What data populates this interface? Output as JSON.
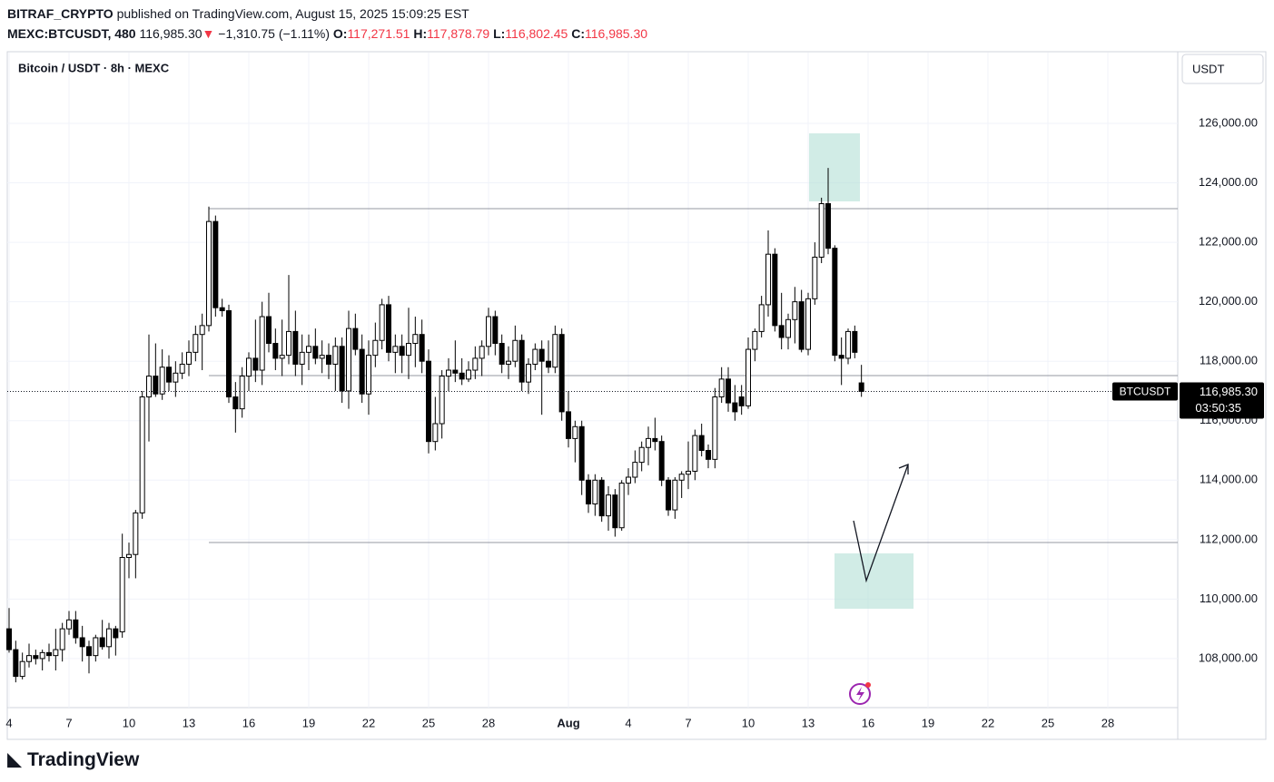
{
  "header": {
    "author": "BITRAF_CRYPTO",
    "published": "published on TradingView.com, August 15, 2025 15:09:25 EST",
    "symbol": "MEXC:BTCUSDT, 480",
    "last": "116,985.30",
    "change": "−1,310.75 (−1.11%)",
    "o_label": "O:",
    "o": "117,271.51",
    "h_label": "H:",
    "h": "117,878.79",
    "l_label": "L:",
    "l": "116,802.45",
    "c_label": "C:",
    "c": "116,985.30"
  },
  "footer": {
    "brand": "TradingView"
  },
  "chart_data": {
    "type": "candlestick",
    "title": "Bitcoin / USDT · 8h · MEXC",
    "currency": "USDT",
    "ylim": [
      106350,
      128380
    ],
    "yticks": [
      {
        "value": 108000,
        "label": "108,000.00"
      },
      {
        "value": 110000,
        "label": "110,000.00"
      },
      {
        "value": 112000,
        "label": "112,000.00"
      },
      {
        "value": 114000,
        "label": "114,000.00"
      },
      {
        "value": 116000,
        "label": "116,000.00"
      },
      {
        "value": 118000,
        "label": "118,000.00"
      },
      {
        "value": 120000,
        "label": "120,000.00"
      },
      {
        "value": 122000,
        "label": "122,000.00"
      },
      {
        "value": 124000,
        "label": "124,000.00"
      },
      {
        "value": 126000,
        "label": "126,000.00"
      }
    ],
    "xticks": [
      {
        "value": 0,
        "label": "4"
      },
      {
        "value": 9,
        "label": "7"
      },
      {
        "value": 18,
        "label": "10"
      },
      {
        "value": 27,
        "label": "13"
      },
      {
        "value": 36,
        "label": "16"
      },
      {
        "value": 45,
        "label": "19"
      },
      {
        "value": 54,
        "label": "22"
      },
      {
        "value": 63,
        "label": "25"
      },
      {
        "value": 72,
        "label": "28"
      },
      {
        "value": 84,
        "label": "Aug"
      },
      {
        "value": 93,
        "label": "4"
      },
      {
        "value": 102,
        "label": "7"
      },
      {
        "value": 111,
        "label": "10"
      },
      {
        "value": 120,
        "label": "13"
      },
      {
        "value": 129,
        "label": "16"
      },
      {
        "value": 138,
        "label": "19"
      },
      {
        "value": 147,
        "label": "22"
      },
      {
        "value": 156,
        "label": "25"
      },
      {
        "value": 165,
        "label": "28"
      }
    ],
    "grid": true,
    "up_color": "#ffffff",
    "down_color": "#000000",
    "wick_color": "#000000",
    "last_price": {
      "name": "BTCUSDT",
      "value": 116985.3,
      "label": "116,985.30",
      "countdown": "03:50:35"
    },
    "series": [
      {
        "name": "BTCUSDT",
        "ohlc": [
          [
            109000,
            109700,
            108200,
            108300
          ],
          [
            108300,
            108600,
            107200,
            107400
          ],
          [
            107400,
            108200,
            107300,
            107900
          ],
          [
            107900,
            108500,
            107700,
            108100
          ],
          [
            108100,
            108300,
            107800,
            108000
          ],
          [
            108000,
            108300,
            107600,
            108200
          ],
          [
            108200,
            108500,
            107900,
            108100
          ],
          [
            108100,
            109000,
            107600,
            108300
          ],
          [
            108300,
            109200,
            107900,
            109000
          ],
          [
            109000,
            109600,
            108800,
            109300
          ],
          [
            109300,
            109600,
            108500,
            108700
          ],
          [
            108700,
            109100,
            107900,
            108400
          ],
          [
            108400,
            108600,
            107500,
            108100
          ],
          [
            108100,
            108800,
            107900,
            108700
          ],
          [
            108700,
            109300,
            108300,
            108400
          ],
          [
            108400,
            109200,
            108000,
            109000
          ],
          [
            109000,
            109100,
            108100,
            108700
          ],
          [
            108900,
            112200,
            108700,
            111400
          ],
          [
            111400,
            111900,
            110700,
            111500
          ],
          [
            111500,
            113000,
            110700,
            112900
          ],
          [
            112900,
            117000,
            112700,
            116800
          ],
          [
            116800,
            118900,
            115300,
            117500
          ],
          [
            117500,
            118600,
            116800,
            116900
          ],
          [
            116900,
            118400,
            116700,
            117800
          ],
          [
            117800,
            118200,
            117000,
            117300
          ],
          [
            117300,
            118000,
            116800,
            117600
          ],
          [
            117600,
            118300,
            117400,
            117900
          ],
          [
            117900,
            118700,
            117500,
            118300
          ],
          [
            118300,
            119200,
            118000,
            118900
          ],
          [
            118900,
            119600,
            117700,
            119200
          ],
          [
            119200,
            123200,
            119000,
            122700
          ],
          [
            122700,
            122900,
            119500,
            119800
          ],
          [
            119800,
            120100,
            119500,
            119700
          ],
          [
            119700,
            119900,
            116600,
            116800
          ],
          [
            116800,
            117300,
            115600,
            116400
          ],
          [
            116400,
            117800,
            116100,
            117500
          ],
          [
            117500,
            118300,
            117000,
            118100
          ],
          [
            118100,
            119400,
            117300,
            117700
          ],
          [
            117700,
            120000,
            117200,
            119500
          ],
          [
            119500,
            120300,
            118300,
            118600
          ],
          [
            118600,
            119100,
            117700,
            118100
          ],
          [
            118100,
            119400,
            117500,
            118200
          ],
          [
            118200,
            120900,
            117900,
            119000
          ],
          [
            119000,
            119700,
            117500,
            117900
          ],
          [
            117900,
            118900,
            117200,
            118300
          ],
          [
            118300,
            118900,
            117700,
            118500
          ],
          [
            118500,
            119100,
            117900,
            118100
          ],
          [
            118100,
            118700,
            117600,
            118200
          ],
          [
            118200,
            118600,
            117400,
            117900
          ],
          [
            117900,
            118800,
            117000,
            118500
          ],
          [
            118500,
            118800,
            116600,
            117000
          ],
          [
            117000,
            119700,
            116400,
            119100
          ],
          [
            119100,
            119600,
            118200,
            118400
          ],
          [
            118400,
            118900,
            116600,
            116900
          ],
          [
            116900,
            118700,
            116200,
            118200
          ],
          [
            118200,
            119300,
            117800,
            118700
          ],
          [
            118700,
            120100,
            118400,
            119900
          ],
          [
            119900,
            120200,
            118000,
            118300
          ],
          [
            118300,
            118900,
            117600,
            118500
          ],
          [
            118500,
            118900,
            117600,
            118200
          ],
          [
            118200,
            119800,
            117400,
            118600
          ],
          [
            118600,
            119500,
            117800,
            118900
          ],
          [
            118900,
            119400,
            117600,
            118000
          ],
          [
            118000,
            118400,
            114900,
            115300
          ],
          [
            115300,
            116800,
            115000,
            115900
          ],
          [
            115900,
            117700,
            115400,
            117500
          ],
          [
            117500,
            118100,
            117000,
            117700
          ],
          [
            117700,
            118700,
            117300,
            117600
          ],
          [
            117600,
            118100,
            117200,
            117400
          ],
          [
            117400,
            118000,
            117300,
            117700
          ],
          [
            117700,
            118500,
            117400,
            118100
          ],
          [
            118100,
            118700,
            117500,
            118500
          ],
          [
            118500,
            119800,
            118200,
            119500
          ],
          [
            119500,
            119700,
            118200,
            118600
          ],
          [
            118600,
            118900,
            117600,
            117900
          ],
          [
            117900,
            118500,
            117400,
            118000
          ],
          [
            118000,
            119200,
            117800,
            118700
          ],
          [
            118700,
            118900,
            117000,
            117300
          ],
          [
            117300,
            118100,
            116900,
            117900
          ],
          [
            117900,
            118600,
            117700,
            118400
          ],
          [
            118400,
            118700,
            116200,
            118000
          ],
          [
            118000,
            118700,
            117600,
            117800
          ],
          [
            117800,
            119200,
            117600,
            118900
          ],
          [
            118900,
            119100,
            116000,
            116300
          ],
          [
            116300,
            117000,
            115100,
            115400
          ],
          [
            115400,
            116000,
            114600,
            115800
          ],
          [
            115800,
            116000,
            113500,
            114000
          ],
          [
            114000,
            114200,
            112900,
            113200
          ],
          [
            113200,
            114200,
            112800,
            114000
          ],
          [
            114000,
            114100,
            112600,
            112800
          ],
          [
            112800,
            113800,
            112300,
            113500
          ],
          [
            113500,
            113700,
            112100,
            112400
          ],
          [
            112400,
            114000,
            112300,
            113900
          ],
          [
            113900,
            114400,
            113500,
            114100
          ],
          [
            114100,
            115000,
            113900,
            114600
          ],
          [
            114600,
            115300,
            114300,
            115100
          ],
          [
            115100,
            115800,
            114500,
            115400
          ],
          [
            115400,
            116100,
            115000,
            115300
          ],
          [
            115300,
            115500,
            113800,
            114000
          ],
          [
            114000,
            114100,
            112800,
            113000
          ],
          [
            113000,
            114100,
            112700,
            114000
          ],
          [
            114000,
            114300,
            113400,
            114200
          ],
          [
            114200,
            115300,
            113700,
            114300
          ],
          [
            114300,
            115700,
            114000,
            115500
          ],
          [
            115500,
            115900,
            114800,
            115000
          ],
          [
            115000,
            115200,
            114400,
            114700
          ],
          [
            114700,
            117100,
            114400,
            116800
          ],
          [
            116800,
            117800,
            116600,
            117400
          ],
          [
            117400,
            117800,
            116300,
            116600
          ],
          [
            116600,
            117200,
            116000,
            116300
          ],
          [
            116800,
            117200,
            116200,
            116500
          ],
          [
            116500,
            118800,
            116400,
            118400
          ],
          [
            118400,
            119100,
            118000,
            119000
          ],
          [
            119000,
            120200,
            118800,
            119900
          ],
          [
            119900,
            122400,
            119500,
            121600
          ],
          [
            121600,
            121800,
            119000,
            119200
          ],
          [
            119200,
            120300,
            118400,
            118800
          ],
          [
            118800,
            119600,
            118400,
            119400
          ],
          [
            119400,
            120500,
            118600,
            120000
          ],
          [
            120000,
            120400,
            118300,
            118400
          ],
          [
            118400,
            120300,
            118200,
            120100
          ],
          [
            120100,
            122000,
            119900,
            121500
          ],
          [
            121500,
            123500,
            121300,
            123300
          ],
          [
            123300,
            124500,
            121600,
            121800
          ],
          [
            121800,
            121900,
            118000,
            118200
          ],
          [
            118200,
            118800,
            117200,
            118100
          ],
          [
            118100,
            119100,
            117900,
            119000
          ],
          [
            119000,
            119200,
            118100,
            118300
          ],
          [
            117271.51,
            117878.79,
            116802.45,
            116985.3
          ]
        ]
      }
    ]
  }
}
